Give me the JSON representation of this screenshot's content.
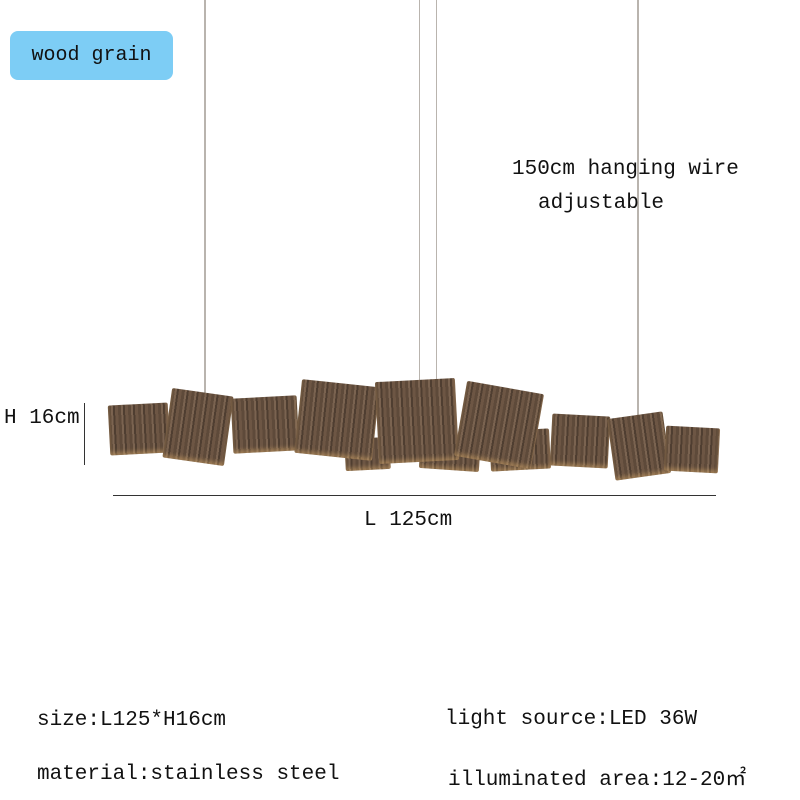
{
  "badge": {
    "label": "wood grain",
    "color": "#7dcdf5"
  },
  "annotations": {
    "wire_line1": "150cm hanging wire",
    "wire_line2": "adjustable",
    "height": "H 16cm",
    "length": "L 125cm"
  },
  "specs": {
    "size": "size:L125*H16cm",
    "light_source": "light source:LED 36W",
    "material": "material:stainless steel",
    "illuminated_area": "illuminated area:12-20㎡"
  }
}
